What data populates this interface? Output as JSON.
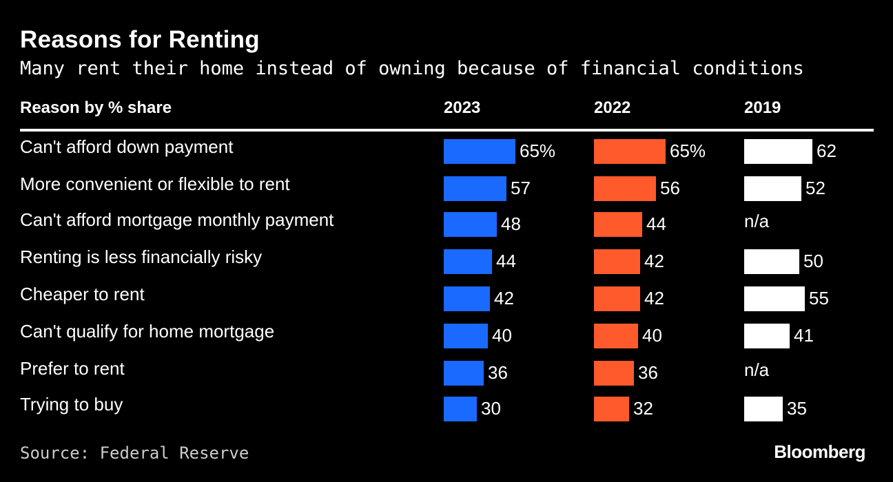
{
  "chart_data": {
    "type": "bar",
    "title": "Reasons for Renting",
    "subtitle": "Many rent their home instead of owning because of financial conditions",
    "column_header": "Reason by % share",
    "categories": [
      "Can't afford down payment",
      "More convenient or flexible to rent",
      "Can't afford mortgage monthly payment",
      "Renting is less financially risky",
      "Cheaper to rent",
      "Can't qualify for home mortgage",
      "Prefer to rent",
      "Trying to buy"
    ],
    "series": [
      {
        "name": "2023",
        "color": "#1a6aff",
        "values": [
          65,
          57,
          48,
          44,
          42,
          40,
          36,
          30
        ],
        "labels": [
          "65%",
          "57",
          "48",
          "44",
          "42",
          "40",
          "36",
          "30"
        ]
      },
      {
        "name": "2022",
        "color": "#ff5a2b",
        "values": [
          65,
          56,
          44,
          42,
          42,
          40,
          36,
          32
        ],
        "labels": [
          "65%",
          "56",
          "44",
          "42",
          "42",
          "40",
          "36",
          "32"
        ]
      },
      {
        "name": "2019",
        "color": "#ffffff",
        "values": [
          62,
          52,
          null,
          50,
          55,
          41,
          null,
          35
        ],
        "labels": [
          "62",
          "52",
          "n/a",
          "50",
          "55",
          "41",
          "n/a",
          "35"
        ]
      }
    ],
    "source": "Source: Federal Reserve",
    "brand": "Bloomberg"
  }
}
